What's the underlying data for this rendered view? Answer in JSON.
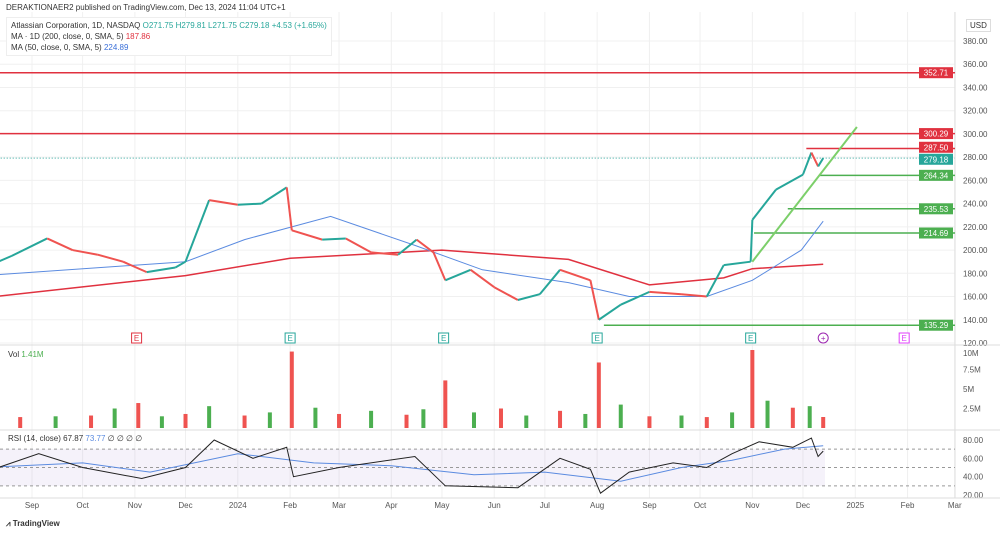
{
  "header": {
    "published": "DERAKTIONAER2 published on TradingView.com, Dec 13, 2024 11:04 UTC+1"
  },
  "legend": {
    "symbol": "Atlassian Corporation, 1D, NASDAQ",
    "o": "O271.75",
    "h": "H279.81",
    "l": "L271.75",
    "c": "C279.18",
    "chg": "+4.53 (+1.65%)",
    "ma200_label": "MA · 1D (200, close, 0, SMA, 5)",
    "ma200_value": "187.86",
    "ma50_label": "MA (50, close, 0, SMA, 5)",
    "ma50_value": "224.89",
    "vol_label": "Vol",
    "vol_value": "1.41M",
    "rsi_label": "RSI (14, close)",
    "rsi_value": "67.87",
    "rsi_ma": "73.77",
    "rsi_extra": "∅ ∅ ∅ ∅"
  },
  "currency": "USD",
  "footer": {
    "brand": "TradingView"
  },
  "colors": {
    "up": "#26a69a",
    "down": "#ef5350",
    "ma200": "#e0313f",
    "ma50": "#5b8be0",
    "level_red": "#e0313f",
    "level_green": "#4caf50",
    "rsi": "#222222",
    "rsi_ma": "#5b8be0"
  },
  "chart_data": {
    "type": "line",
    "price_axis": {
      "ticks": [
        "380.00",
        "360.00",
        "340.00",
        "320.00",
        "300.00",
        "280.00",
        "260.00",
        "240.00",
        "220.00",
        "200.00",
        "180.00",
        "160.00",
        "140.00",
        "120.00"
      ],
      "ylim": [
        120,
        380
      ]
    },
    "x_ticks": [
      [
        "Sep",
        "2023-09-01"
      ],
      [
        "Oct",
        "2023-10-01"
      ],
      [
        "Nov",
        "2023-11-01"
      ],
      [
        "Dec",
        "2023-12-01"
      ],
      [
        "2024",
        "2024-01-01"
      ],
      [
        "Feb",
        "2024-02-01"
      ],
      [
        "Mar",
        "2024-03-01"
      ],
      [
        "Apr",
        "2024-04-01"
      ],
      [
        "May",
        "2024-05-01"
      ],
      [
        "Jun",
        "2024-06-01"
      ],
      [
        "Jul",
        "2024-07-01"
      ],
      [
        "Aug",
        "2024-08-01"
      ],
      [
        "Sep",
        "2024-09-01"
      ],
      [
        "Oct",
        "2024-10-01"
      ],
      [
        "Nov",
        "2024-11-01"
      ],
      [
        "Dec",
        "2024-12-01"
      ],
      [
        "2025",
        "2025-01-01"
      ],
      [
        "Feb",
        "2025-02-01"
      ],
      [
        "Mar",
        "2025-03-01"
      ]
    ],
    "close": [
      [
        "2023-08-04",
        185
      ],
      [
        "2023-08-20",
        195
      ],
      [
        "2023-09-10",
        210
      ],
      [
        "2023-09-25",
        200
      ],
      [
        "2023-10-10",
        196
      ],
      [
        "2023-10-25",
        190
      ],
      [
        "2023-11-08",
        181
      ],
      [
        "2023-11-25",
        185
      ],
      [
        "2023-12-01",
        190
      ],
      [
        "2023-12-15",
        243
      ],
      [
        "2024-01-01",
        239
      ],
      [
        "2024-01-15",
        240
      ],
      [
        "2024-01-30",
        254
      ],
      [
        "2024-02-02",
        217
      ],
      [
        "2024-02-20",
        209
      ],
      [
        "2024-03-05",
        210
      ],
      [
        "2024-03-20",
        198
      ],
      [
        "2024-04-05",
        196
      ],
      [
        "2024-04-16",
        209
      ],
      [
        "2024-04-26",
        198
      ],
      [
        "2024-05-03",
        174
      ],
      [
        "2024-05-18",
        183
      ],
      [
        "2024-06-01",
        168
      ],
      [
        "2024-06-15",
        157
      ],
      [
        "2024-06-28",
        162
      ],
      [
        "2024-07-10",
        183
      ],
      [
        "2024-07-28",
        174
      ],
      [
        "2024-08-02",
        140
      ],
      [
        "2024-08-15",
        153
      ],
      [
        "2024-09-01",
        164
      ],
      [
        "2024-09-20",
        162
      ],
      [
        "2024-10-05",
        160
      ],
      [
        "2024-10-15",
        187
      ],
      [
        "2024-10-31",
        190
      ],
      [
        "2024-11-01",
        226
      ],
      [
        "2024-11-15",
        252
      ],
      [
        "2024-12-01",
        265
      ],
      [
        "2024-12-06",
        284
      ],
      [
        "2024-12-10",
        272
      ],
      [
        "2024-12-13",
        279.18
      ]
    ],
    "ma200": [
      [
        "2023-08-04",
        159
      ],
      [
        "2023-12-01",
        178
      ],
      [
        "2024-02-01",
        193
      ],
      [
        "2024-05-01",
        200
      ],
      [
        "2024-07-15",
        192
      ],
      [
        "2024-09-01",
        170
      ],
      [
        "2024-10-15",
        176
      ],
      [
        "2024-11-01",
        184
      ],
      [
        "2024-12-13",
        187.86
      ]
    ],
    "ma50": [
      [
        "2023-08-04",
        178
      ],
      [
        "2023-12-01",
        190
      ],
      [
        "2024-01-05",
        209
      ],
      [
        "2024-02-25",
        229
      ],
      [
        "2024-04-15",
        204
      ],
      [
        "2024-05-25",
        183
      ],
      [
        "2024-07-15",
        172
      ],
      [
        "2024-08-20",
        160
      ],
      [
        "2024-10-05",
        160
      ],
      [
        "2024-11-01",
        174
      ],
      [
        "2024-11-30",
        200
      ],
      [
        "2024-12-13",
        224.89
      ]
    ],
    "levels": [
      {
        "value": 352.71,
        "label": "352.71",
        "color": "red",
        "from": "2023-08-01"
      },
      {
        "value": 300.29,
        "label": "300.29",
        "color": "red",
        "from": "2023-08-01"
      },
      {
        "value": 287.5,
        "label": "287.50",
        "color": "red",
        "from": "2024-12-03"
      },
      {
        "value": 279.18,
        "label": "279.18",
        "color": "last",
        "from": "2023-08-01"
      },
      {
        "value": 264.34,
        "label": "264.34",
        "color": "green",
        "from": "2024-12-11"
      },
      {
        "value": 235.53,
        "label": "235.53",
        "color": "green",
        "from": "2024-11-22"
      },
      {
        "value": 214.69,
        "label": "214.69",
        "color": "green",
        "from": "2024-11-02"
      },
      {
        "value": 135.29,
        "label": "135.29",
        "color": "green",
        "from": "2024-08-05"
      }
    ],
    "trendline": [
      [
        "2024-11-01",
        190
      ],
      [
        "2025-01-02",
        306
      ]
    ],
    "earnings": [
      [
        "2023-11-02",
        "E",
        "red"
      ],
      [
        "2024-02-01",
        "E",
        "green"
      ],
      [
        "2024-05-02",
        "E",
        "green"
      ],
      [
        "2024-08-01",
        "E",
        "green"
      ],
      [
        "2024-10-31",
        "E",
        "green"
      ],
      [
        "2024-12-13",
        "+",
        "purple"
      ],
      [
        "2025-01-30",
        "E",
        "pink"
      ]
    ],
    "volume_axis": {
      "ticks": [
        "10M",
        "7.5M",
        "5M",
        "2.5M"
      ]
    },
    "volume": [
      [
        "2023-08-04",
        2.0
      ],
      [
        "2023-08-25",
        1.4
      ],
      [
        "2023-09-15",
        1.5
      ],
      [
        "2023-10-06",
        1.6
      ],
      [
        "2023-10-20",
        2.5
      ],
      [
        "2023-11-03",
        3.2
      ],
      [
        "2023-11-17",
        1.5
      ],
      [
        "2023-12-01",
        1.8
      ],
      [
        "2023-12-15",
        2.8
      ],
      [
        "2024-01-05",
        1.6
      ],
      [
        "2024-01-20",
        2.0
      ],
      [
        "2024-02-02",
        9.8
      ],
      [
        "2024-02-16",
        2.6
      ],
      [
        "2024-03-01",
        1.8
      ],
      [
        "2024-03-20",
        2.2
      ],
      [
        "2024-04-10",
        1.7
      ],
      [
        "2024-04-20",
        2.4
      ],
      [
        "2024-05-03",
        6.1
      ],
      [
        "2024-05-20",
        2.0
      ],
      [
        "2024-06-05",
        2.5
      ],
      [
        "2024-06-20",
        1.6
      ],
      [
        "2024-07-10",
        2.2
      ],
      [
        "2024-07-25",
        1.8
      ],
      [
        "2024-08-02",
        8.4
      ],
      [
        "2024-08-15",
        3.0
      ],
      [
        "2024-09-01",
        1.5
      ],
      [
        "2024-09-20",
        1.6
      ],
      [
        "2024-10-05",
        1.4
      ],
      [
        "2024-10-20",
        2.0
      ],
      [
        "2024-11-01",
        10.0
      ],
      [
        "2024-11-10",
        3.5
      ],
      [
        "2024-11-25",
        2.6
      ],
      [
        "2024-12-05",
        2.8
      ],
      [
        "2024-12-13",
        1.41
      ]
    ],
    "rsi_axis": {
      "ticks": [
        "80.00",
        "60.00",
        "40.00",
        "20.00"
      ],
      "band": [
        30,
        70
      ]
    },
    "rsi": [
      [
        "2023-08-04",
        45
      ],
      [
        "2023-09-05",
        65
      ],
      [
        "2023-10-01",
        50
      ],
      [
        "2023-11-05",
        38
      ],
      [
        "2023-12-01",
        50
      ],
      [
        "2023-12-18",
        80
      ],
      [
        "2024-01-10",
        60
      ],
      [
        "2024-01-30",
        72
      ],
      [
        "2024-02-03",
        40
      ],
      [
        "2024-03-01",
        50
      ],
      [
        "2024-04-15",
        62
      ],
      [
        "2024-05-03",
        30
      ],
      [
        "2024-06-15",
        28
      ],
      [
        "2024-07-10",
        60
      ],
      [
        "2024-07-28",
        48
      ],
      [
        "2024-08-03",
        22
      ],
      [
        "2024-08-20",
        45
      ],
      [
        "2024-09-15",
        55
      ],
      [
        "2024-10-05",
        50
      ],
      [
        "2024-10-20",
        65
      ],
      [
        "2024-11-05",
        78
      ],
      [
        "2024-11-25",
        72
      ],
      [
        "2024-12-06",
        82
      ],
      [
        "2024-12-10",
        62
      ],
      [
        "2024-12-13",
        67.87
      ]
    ],
    "rsi_ma": [
      [
        "2023-08-04",
        50
      ],
      [
        "2023-10-01",
        55
      ],
      [
        "2023-11-10",
        45
      ],
      [
        "2024-01-01",
        65
      ],
      [
        "2024-02-15",
        55
      ],
      [
        "2024-04-01",
        52
      ],
      [
        "2024-05-20",
        42
      ],
      [
        "2024-07-01",
        45
      ],
      [
        "2024-08-15",
        35
      ],
      [
        "2024-09-20",
        50
      ],
      [
        "2024-10-20",
        58
      ],
      [
        "2024-11-20",
        70
      ],
      [
        "2024-12-13",
        73.77
      ]
    ]
  }
}
